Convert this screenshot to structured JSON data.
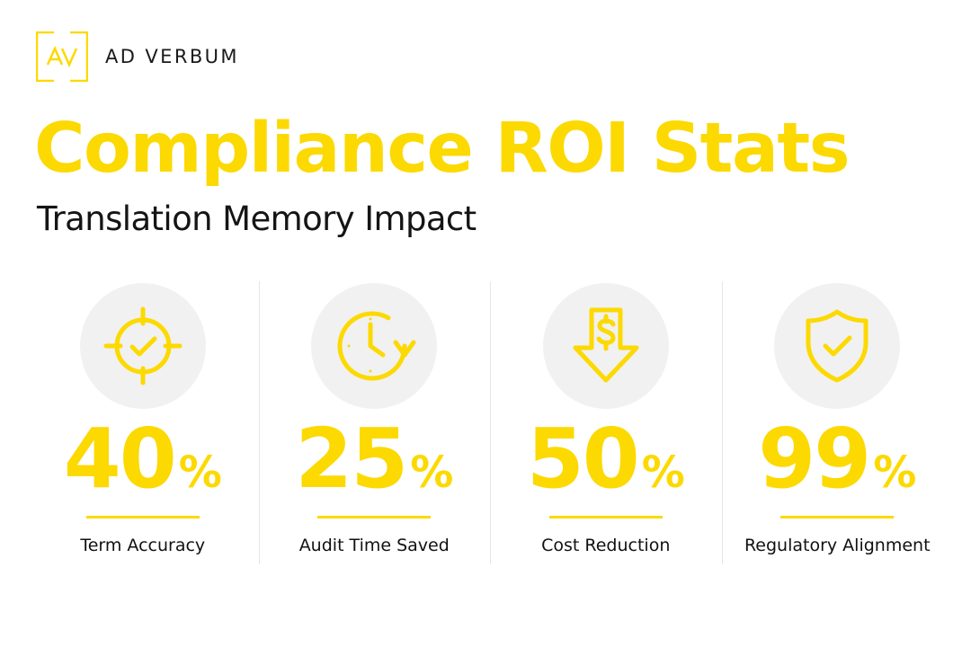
{
  "brand": {
    "logo_text": "AV",
    "name": "AD VERBUM",
    "accent_color": "#fcd900"
  },
  "header": {
    "title": "Compliance ROI Stats",
    "subtitle": "Translation Memory Impact"
  },
  "stats": [
    {
      "icon": "target-check-icon",
      "value": "40",
      "unit": "%",
      "label": "Term Accuracy"
    },
    {
      "icon": "clock-refresh-icon",
      "value": "25",
      "unit": "%",
      "label": "Audit Time Saved"
    },
    {
      "icon": "dollar-down-arrow-icon",
      "value": "50",
      "unit": "%",
      "label": "Cost Reduction"
    },
    {
      "icon": "shield-check-icon",
      "value": "99",
      "unit": "%",
      "label": "Regulatory Alignment"
    }
  ]
}
